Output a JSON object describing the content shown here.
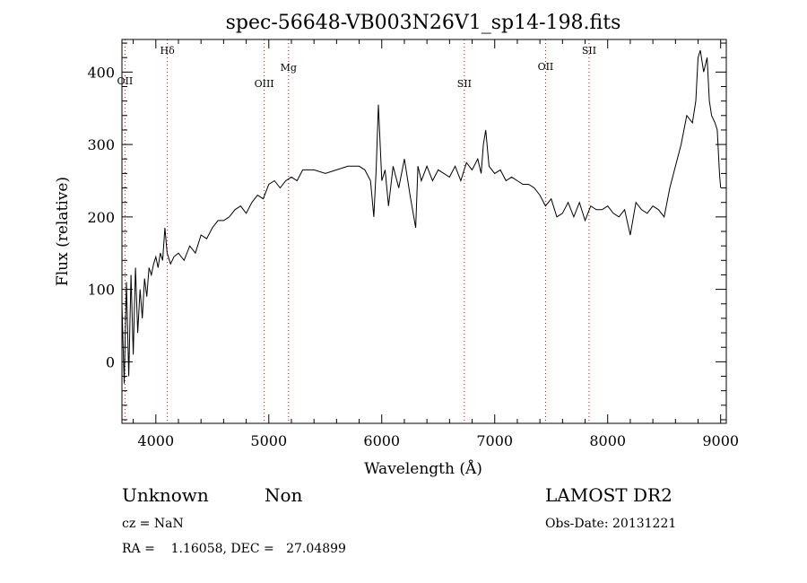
{
  "chart_data": {
    "type": "line",
    "title": "spec-56648-VB003N26V1_sp14-198.fits",
    "xlabel": "Wavelength (Å)",
    "ylabel": "Flux (relative)",
    "xlim": [
      3700,
      9050
    ],
    "ylim": [
      -85,
      445
    ],
    "xticks": [
      4000,
      5000,
      6000,
      7000,
      8000,
      9000
    ],
    "yticks": [
      0,
      100,
      200,
      300,
      400
    ],
    "grid": false,
    "line_color": "#000000",
    "marker_color": "#cc0000",
    "series": [
      {
        "x": [
          3700,
          3720,
          3740,
          3760,
          3780,
          3800,
          3820,
          3840,
          3860,
          3880,
          3900,
          3920,
          3940,
          3960,
          3980,
          4000,
          4020,
          4040,
          4060,
          4080,
          4100,
          4130,
          4160,
          4200,
          4250,
          4300,
          4350,
          4400,
          4450,
          4500,
          4550,
          4600,
          4650,
          4700,
          4750,
          4800,
          4850,
          4900,
          4950,
          5000,
          5050,
          5100,
          5150,
          5200,
          5250,
          5300,
          5400,
          5500,
          5600,
          5700,
          5800,
          5850,
          5900,
          5930,
          5950,
          5970,
          6000,
          6030,
          6060,
          6100,
          6150,
          6200,
          6250,
          6300,
          6320,
          6350,
          6400,
          6450,
          6500,
          6550,
          6600,
          6650,
          6700,
          6750,
          6800,
          6850,
          6880,
          6900,
          6920,
          6950,
          7000,
          7050,
          7100,
          7150,
          7200,
          7250,
          7300,
          7350,
          7400,
          7450,
          7500,
          7550,
          7600,
          7650,
          7700,
          7750,
          7800,
          7850,
          7900,
          7950,
          8000,
          8050,
          8100,
          8150,
          8200,
          8250,
          8300,
          8350,
          8400,
          8450,
          8500,
          8550,
          8600,
          8650,
          8700,
          8750,
          8780,
          8800,
          8820,
          8850,
          8880,
          8900,
          8920,
          8950,
          8970,
          8990,
          9000
        ],
        "y": [
          80,
          -30,
          110,
          -20,
          120,
          10,
          130,
          40,
          100,
          60,
          115,
          90,
          130,
          120,
          135,
          145,
          130,
          150,
          140,
          185,
          150,
          135,
          145,
          150,
          140,
          160,
          150,
          175,
          170,
          185,
          195,
          195,
          200,
          210,
          215,
          205,
          220,
          230,
          225,
          245,
          250,
          240,
          250,
          255,
          250,
          265,
          265,
          260,
          265,
          270,
          270,
          265,
          250,
          200,
          265,
          355,
          250,
          265,
          215,
          270,
          240,
          280,
          230,
          185,
          270,
          250,
          270,
          250,
          265,
          260,
          255,
          270,
          250,
          275,
          265,
          280,
          260,
          300,
          320,
          270,
          260,
          265,
          250,
          255,
          250,
          245,
          245,
          240,
          230,
          215,
          225,
          200,
          205,
          220,
          200,
          220,
          195,
          215,
          210,
          210,
          215,
          205,
          200,
          210,
          175,
          220,
          210,
          205,
          215,
          210,
          200,
          240,
          270,
          300,
          340,
          330,
          360,
          420,
          430,
          400,
          420,
          360,
          340,
          330,
          320,
          260,
          240
        ]
      }
    ],
    "lines": [
      {
        "label": "OII",
        "x": 3727
      },
      {
        "label": "Hδ",
        "x": 4102
      },
      {
        "label": "OIII",
        "x": 4959
      },
      {
        "label": "Mg",
        "x": 5175
      },
      {
        "label": "SII",
        "x": 6731
      },
      {
        "label": "OII",
        "x": 7450
      },
      {
        "label": "SII",
        "x": 7835
      }
    ]
  },
  "info": {
    "object_class": "Unknown",
    "subclass": "Non",
    "survey": "LAMOST DR2",
    "cz": "cz = NaN",
    "obs_date": "Obs-Date: 20131221",
    "coords": "RA =    1.16058, DEC =   27.04899"
  }
}
